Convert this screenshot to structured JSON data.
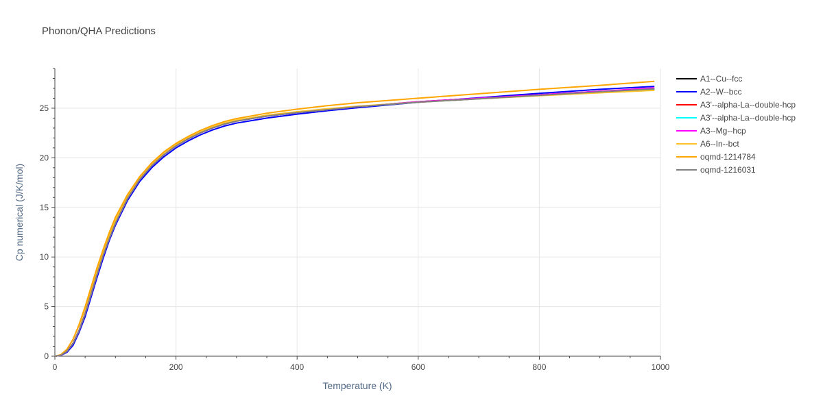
{
  "chart_data": {
    "type": "line",
    "title": "Phonon/QHA Predictions",
    "xlabel": "Temperature (K)",
    "ylabel": "Cp numerical (J/K/mol)",
    "xlim": [
      0,
      1000
    ],
    "ylim": [
      0,
      29
    ],
    "xticks": [
      0,
      200,
      400,
      600,
      800,
      1000
    ],
    "yticks": [
      0,
      5,
      10,
      15,
      20,
      25
    ],
    "grid": true,
    "legend_position": "right",
    "x": [
      0,
      10,
      20,
      30,
      40,
      50,
      60,
      70,
      80,
      90,
      100,
      120,
      140,
      160,
      180,
      200,
      220,
      240,
      260,
      280,
      300,
      350,
      400,
      450,
      500,
      600,
      700,
      800,
      900,
      990
    ],
    "series": [
      {
        "name": "A1--Cu--fcc",
        "color": "#000000",
        "values": [
          0,
          0.1,
          0.5,
          1.3,
          2.6,
          4.3,
          6.3,
          8.3,
          10.2,
          11.9,
          13.4,
          15.9,
          17.8,
          19.2,
          20.3,
          21.2,
          21.9,
          22.5,
          23.0,
          23.4,
          23.7,
          24.2,
          24.55,
          24.85,
          25.15,
          25.65,
          26.0,
          26.35,
          26.7,
          27.0
        ]
      },
      {
        "name": "A2--W--bcc",
        "color": "#0000ff",
        "values": [
          0,
          0.08,
          0.4,
          1.1,
          2.4,
          4.0,
          6.0,
          8.0,
          9.9,
          11.7,
          13.2,
          15.7,
          17.6,
          19.0,
          20.1,
          21.0,
          21.7,
          22.3,
          22.8,
          23.2,
          23.5,
          24.0,
          24.4,
          24.75,
          25.05,
          25.6,
          26.05,
          26.5,
          26.9,
          27.2
        ]
      },
      {
        "name": "A3'--alpha-La--double-hcp",
        "color": "#ff0000",
        "values": [
          0,
          0.1,
          0.5,
          1.3,
          2.6,
          4.3,
          6.3,
          8.3,
          10.2,
          11.9,
          13.4,
          15.9,
          17.8,
          19.2,
          20.3,
          21.2,
          21.9,
          22.5,
          23.0,
          23.4,
          23.7,
          24.2,
          24.55,
          24.85,
          25.15,
          25.6,
          25.95,
          26.3,
          26.6,
          26.9
        ]
      },
      {
        "name": "A3'--alpha-La--double-hcp",
        "color": "#00ffff",
        "values": [
          0,
          0.1,
          0.5,
          1.3,
          2.6,
          4.3,
          6.3,
          8.3,
          10.2,
          11.9,
          13.4,
          15.9,
          17.8,
          19.2,
          20.3,
          21.2,
          21.9,
          22.5,
          23.0,
          23.4,
          23.7,
          24.2,
          24.55,
          24.85,
          25.15,
          25.6,
          25.95,
          26.3,
          26.6,
          26.9
        ]
      },
      {
        "name": "A3--Mg--hcp",
        "color": "#ff00ff",
        "values": [
          0,
          0.1,
          0.5,
          1.3,
          2.6,
          4.3,
          6.3,
          8.3,
          10.2,
          11.9,
          13.4,
          15.9,
          17.8,
          19.2,
          20.3,
          21.2,
          21.9,
          22.5,
          23.0,
          23.4,
          23.7,
          24.2,
          24.55,
          24.85,
          25.15,
          25.65,
          26.0,
          26.35,
          26.7,
          27.05
        ]
      },
      {
        "name": "A6--In--bct",
        "color": "#ffc125",
        "values": [
          0,
          0.15,
          0.7,
          1.7,
          3.1,
          4.8,
          6.8,
          8.7,
          10.5,
          12.2,
          13.7,
          16.1,
          18.0,
          19.4,
          20.5,
          21.35,
          22.0,
          22.6,
          23.1,
          23.5,
          23.8,
          24.3,
          24.65,
          24.95,
          25.2,
          25.6,
          25.95,
          26.25,
          26.55,
          26.8
        ]
      },
      {
        "name": "oqmd-1214784",
        "color": "#ffa500",
        "values": [
          0,
          0.15,
          0.7,
          1.7,
          3.2,
          5.0,
          7.0,
          9.0,
          10.8,
          12.5,
          14.0,
          16.3,
          18.1,
          19.5,
          20.6,
          21.45,
          22.15,
          22.75,
          23.25,
          23.65,
          23.95,
          24.5,
          24.9,
          25.25,
          25.55,
          26.0,
          26.45,
          26.9,
          27.3,
          27.7
        ]
      },
      {
        "name": "oqmd-1216031",
        "color": "#808080",
        "values": [
          0,
          0.1,
          0.5,
          1.3,
          2.6,
          4.3,
          6.3,
          8.3,
          10.2,
          11.9,
          13.4,
          15.9,
          17.8,
          19.2,
          20.3,
          21.2,
          21.9,
          22.5,
          23.0,
          23.4,
          23.7,
          24.2,
          24.55,
          24.85,
          25.15,
          25.6,
          25.95,
          26.3,
          26.65,
          26.95
        ]
      }
    ]
  }
}
